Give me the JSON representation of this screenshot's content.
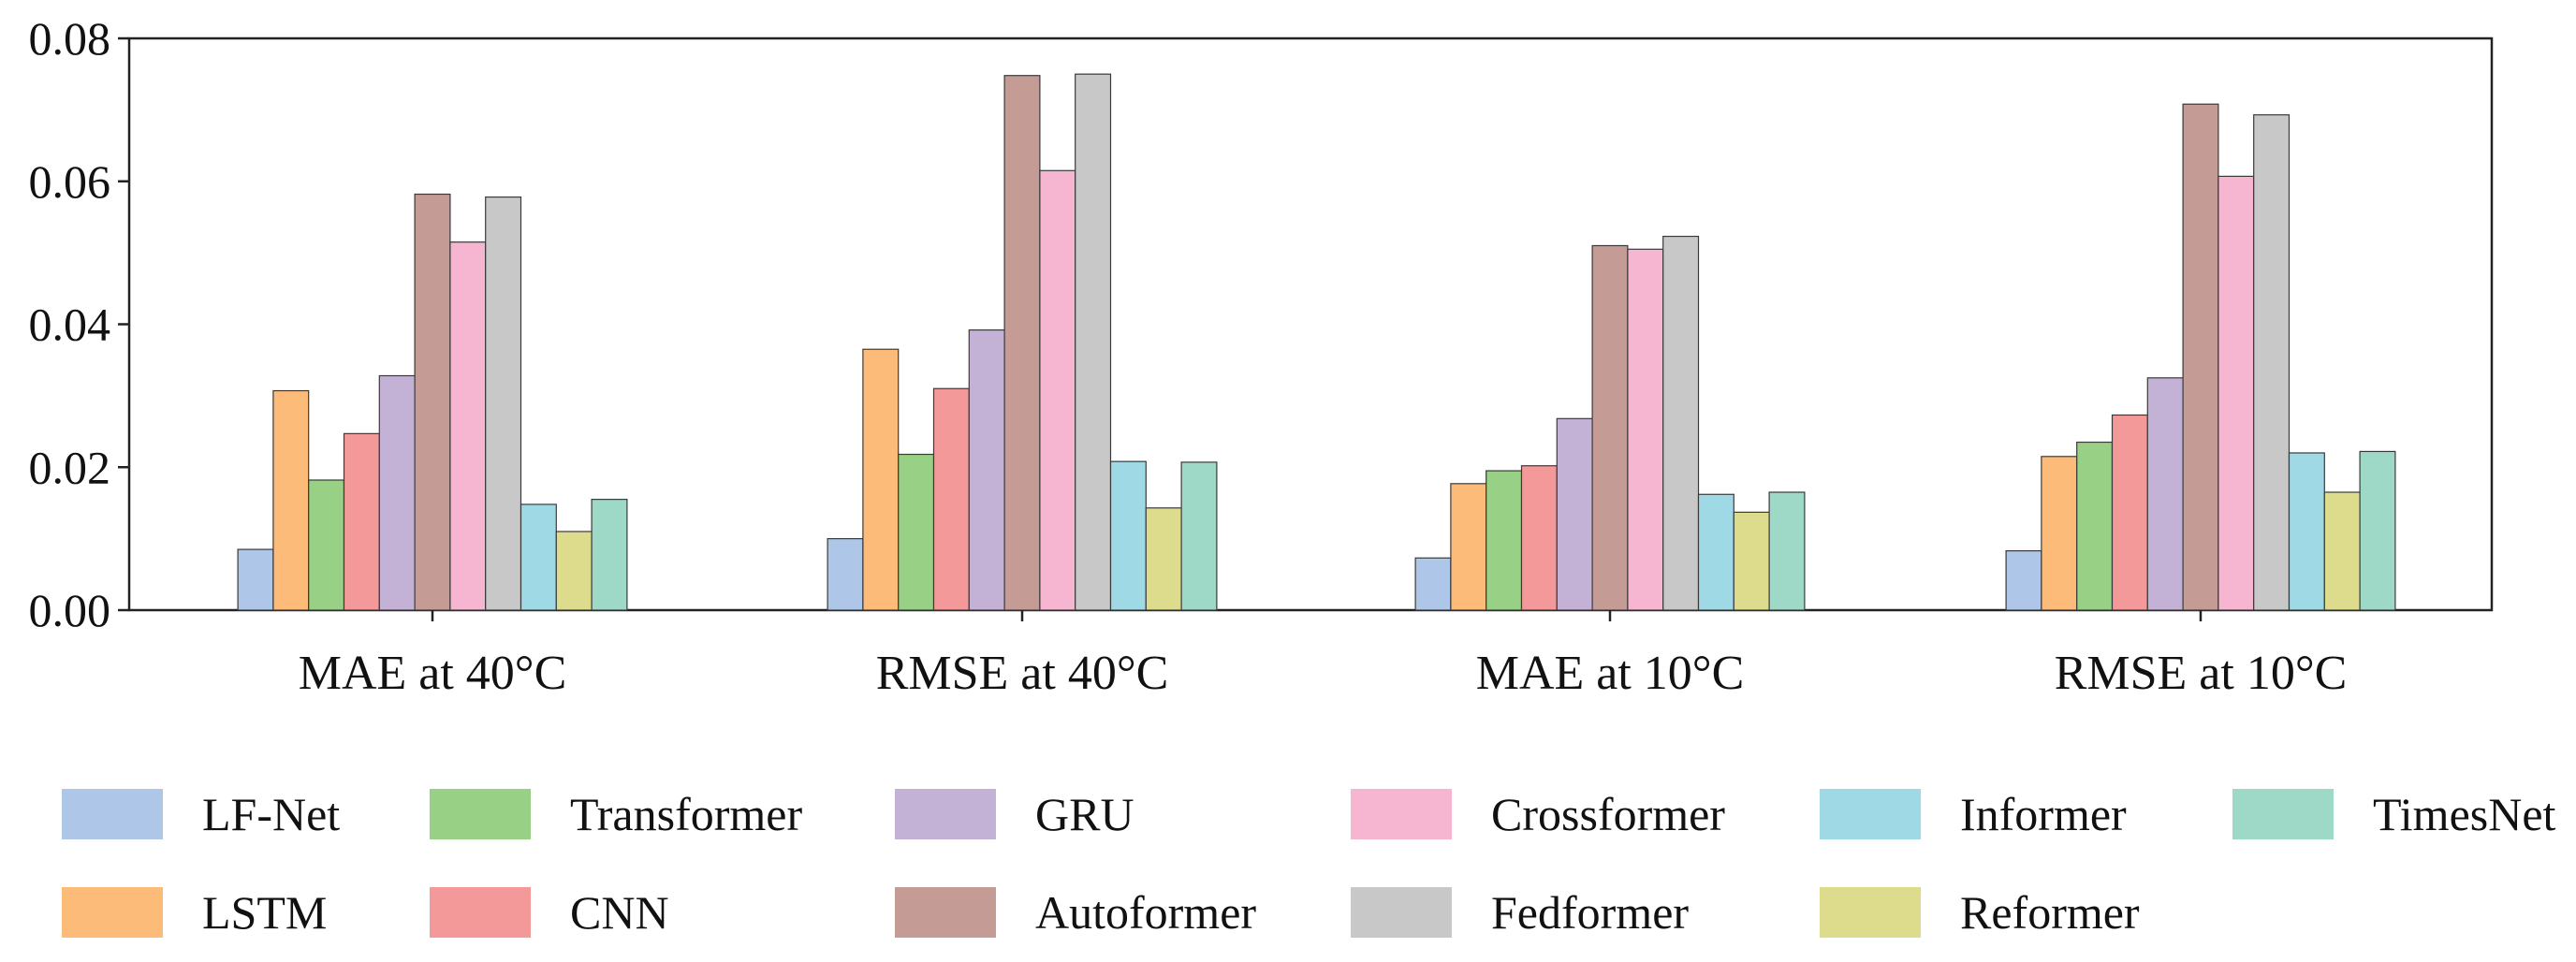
{
  "chart_data": {
    "type": "bar",
    "title": "",
    "xlabel": "",
    "ylabel": "",
    "ylim": [
      0,
      0.08
    ],
    "yticks": [
      "0.00",
      "0.02",
      "0.04",
      "0.06",
      "0.08"
    ],
    "grid": false,
    "legend_position": "bottom",
    "categories": [
      "MAE at 40°C",
      "RMSE at 40°C",
      "MAE at 10°C",
      "RMSE at 10°C"
    ],
    "series": [
      {
        "name": "LF-Net",
        "color": "#aec6e8",
        "values": [
          0.0085,
          0.01,
          0.0073,
          0.0083
        ]
      },
      {
        "name": "LSTM",
        "color": "#fdbb7a",
        "values": [
          0.0307,
          0.0365,
          0.0177,
          0.0215
        ]
      },
      {
        "name": "Transformer",
        "color": "#98d086",
        "values": [
          0.0182,
          0.0218,
          0.0195,
          0.0235
        ]
      },
      {
        "name": "CNN",
        "color": "#f49999",
        "values": [
          0.0247,
          0.031,
          0.0202,
          0.0273
        ]
      },
      {
        "name": "GRU",
        "color": "#c4b1d6",
        "values": [
          0.0328,
          0.0392,
          0.0268,
          0.0325
        ]
      },
      {
        "name": "Autoformer",
        "color": "#c49c95",
        "values": [
          0.0582,
          0.0748,
          0.051,
          0.0708
        ]
      },
      {
        "name": "Crossformer",
        "color": "#f6b6d2",
        "values": [
          0.0515,
          0.0615,
          0.0505,
          0.0607
        ]
      },
      {
        "name": "Fedformer",
        "color": "#c8c8c8",
        "values": [
          0.0578,
          0.075,
          0.0523,
          0.0693
        ]
      },
      {
        "name": "Informer",
        "color": "#9fd9e6",
        "values": [
          0.0148,
          0.0208,
          0.0162,
          0.022
        ]
      },
      {
        "name": "Reformer",
        "color": "#dcdc8c",
        "values": [
          0.011,
          0.0143,
          0.0137,
          0.0165
        ]
      },
      {
        "name": "TimesNet",
        "color": "#9ed8c6",
        "values": [
          0.0155,
          0.0207,
          0.0165,
          0.0222
        ]
      }
    ]
  }
}
